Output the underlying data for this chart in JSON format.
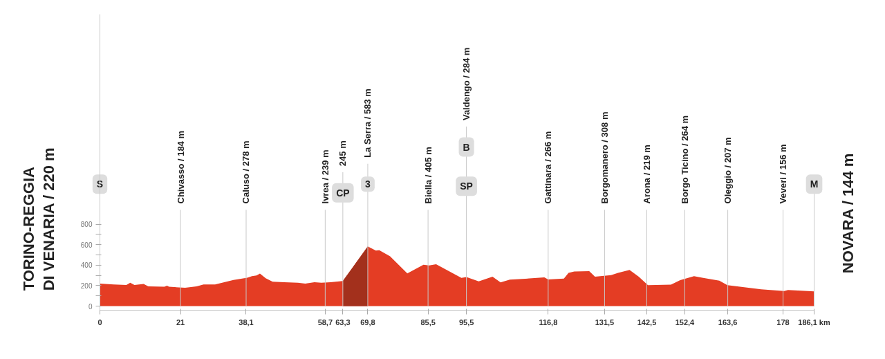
{
  "chart_data": {
    "type": "area",
    "x": [
      0,
      3.6,
      6.9,
      7.9,
      9.0,
      11.4,
      12.6,
      16.8,
      17.5,
      18,
      22.2,
      25.2,
      27,
      30,
      34.8,
      38.4,
      39.6,
      40.8,
      41.7,
      43.2,
      45,
      48,
      51.6,
      53.5,
      55.9,
      57.7,
      60.1,
      63.3,
      69.8,
      71.9,
      72.8,
      75.6,
      80.1,
      84.3,
      85.8,
      87.6,
      94.2,
      95.5,
      98.7,
      102.3,
      104.4,
      106.8,
      115.8,
      116.8,
      120.9,
      122.1,
      123.6,
      127.5,
      129.0,
      133.2,
      135.0,
      138.0,
      140.4,
      142.8,
      148.8,
      151.2,
      154.8,
      157.2,
      161.4,
      163.5,
      172.3,
      178.3,
      179.3,
      186.1
    ],
    "series": [
      {
        "color": "#e43d24",
        "values": [
          220,
          211,
          207,
          229,
          207,
          216,
          193,
          189,
          200,
          189,
          180,
          193,
          211,
          211,
          256,
          278,
          293,
          300,
          318,
          273,
          238,
          233,
          229,
          220,
          233,
          229,
          233,
          245,
          583,
          542,
          546,
          487,
          320,
          404,
          398,
          409,
          276,
          284,
          242,
          287,
          231,
          258,
          280,
          260,
          269,
          324,
          338,
          342,
          287,
          302,
          324,
          353,
          287,
          204,
          209,
          253,
          293,
          276,
          249,
          204,
          164,
          147,
          158,
          144
        ]
      },
      {
        "color": "#a3301c",
        "x": [
          63.3,
          69.8
        ],
        "values": [
          245,
          583
        ]
      }
    ],
    "xlim": [
      0,
      186.1
    ],
    "ylim": [
      -40,
      2850
    ],
    "xticks": [
      0,
      21,
      {
        "value": 38.1,
        "label": "38,1"
      },
      {
        "value": 58.7,
        "label": "58,7"
      },
      {
        "value": 63.3,
        "label": "63,3"
      },
      {
        "value": 69.8,
        "label": "69,8"
      },
      {
        "value": 85.5,
        "label": "85,5"
      },
      {
        "value": 95.5,
        "label": "95,5"
      },
      {
        "value": 116.8,
        "label": "116,8"
      },
      {
        "value": 131.5,
        "label": "131,5"
      },
      {
        "value": 142.5,
        "label": "142,5"
      },
      {
        "value": 152.4,
        "label": "152,4"
      },
      {
        "value": 163.6,
        "label": "163,6"
      },
      178,
      {
        "value": 186.1,
        "label": "186,1 km"
      }
    ],
    "yticks": [
      0,
      {
        "value": 100,
        "label": null
      },
      200,
      {
        "value": 300,
        "label": null
      },
      400,
      {
        "value": 500,
        "label": null
      },
      600,
      {
        "value": 700,
        "label": null
      },
      800
    ],
    "ref_lines": [
      {
        "axis": "x",
        "value": 21,
        "label": "Chivasso / 184 m",
        "color": "#c8c8c8"
      },
      {
        "axis": "x",
        "value": 38.1,
        "label": "Caluso / 278 m",
        "color": "#c8c8c8"
      },
      {
        "axis": "x",
        "value": 58.7,
        "label": "Ivrea / 239 m",
        "color": "#c8c8c8"
      },
      {
        "axis": "x",
        "value": 63.3,
        "label": "245 m",
        "color": "#c8c8c8"
      },
      {
        "axis": "x",
        "value": 69.8,
        "label": "La Serra / 583 m",
        "color": "#c8c8c8"
      },
      {
        "axis": "x",
        "value": 85.5,
        "label": "Biella / 405 m",
        "color": "#c8c8c8"
      },
      {
        "axis": "x",
        "value": 95.5,
        "label": "Valdengo / 284 m",
        "color": "#c8c8c8"
      },
      {
        "axis": "x",
        "value": 116.8,
        "label": "Gattinara / 266 m",
        "color": "#c8c8c8"
      },
      {
        "axis": "x",
        "value": 131.5,
        "label": "Borgomanero / 308 m",
        "color": "#c8c8c8"
      },
      {
        "axis": "x",
        "value": 142.5,
        "label": "Arona / 219 m",
        "color": "#c8c8c8"
      },
      {
        "axis": "x",
        "value": 152.4,
        "label": "Borgo Ticino / 264 m",
        "color": "#c8c8c8"
      },
      {
        "axis": "x",
        "value": 163.6,
        "label": "Oleggio / 207 m",
        "color": "#c8c8c8"
      },
      {
        "axis": "x",
        "value": 178,
        "label": "Veveri / 156 m",
        "color": "#c8c8c8"
      },
      {
        "axis": "x",
        "value": 186.1,
        "color": "#c8c8c8"
      }
    ],
    "annotations": [
      "TORINO-REGGIA\nDI VENARIA / 220 m",
      "NOVARA / 144 m",
      {
        "text": "S",
        "x": 0,
        "y": 1190
      },
      {
        "text": "CP",
        "x": 63.3,
        "y": 1107
      },
      {
        "text": "3",
        "x": 69.8,
        "y": 1190
      },
      {
        "text": "SP",
        "x": 95.5,
        "y": 1170
      },
      {
        "text": "B",
        "x": 95.5,
        "y": 1553
      },
      {
        "text": "M",
        "x": 186.1,
        "y": 1190
      }
    ]
  }
}
